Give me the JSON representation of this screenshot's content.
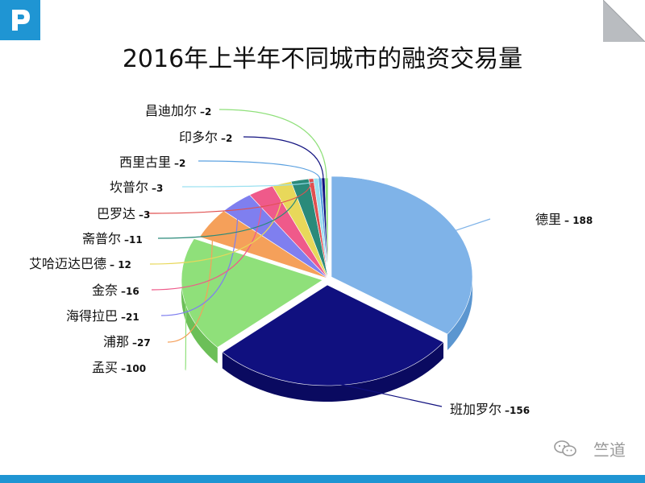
{
  "page": {
    "title": "2016年上半年不同城市的融资交易量",
    "watermark": "竺道",
    "accent_color": "#1f95d3"
  },
  "chart_data": {
    "type": "pie",
    "title": "2016年上半年不同城市的融资交易量",
    "style": "3d-exploded",
    "legend": "none",
    "slices": [
      {
        "label": "德里",
        "value_text": "– 188",
        "value": 188,
        "color": "#7fb3e8",
        "side_color": "#5b96d0"
      },
      {
        "label": "班加罗尔",
        "value_text": "–156",
        "value": 156,
        "color": "#10107f",
        "side_color": "#0a0a60"
      },
      {
        "label": "孟买",
        "value_text": "–100",
        "value": 100,
        "color": "#8fe07a",
        "side_color": "#6cbf58"
      },
      {
        "label": "浦那",
        "value_text": "–27",
        "value": 27,
        "color": "#f5a05a",
        "side_color": "#d9833e"
      },
      {
        "label": "海得拉巴",
        "value_text": "–21",
        "value": 21,
        "color": "#7f7fef",
        "side_color": "#6262cf"
      },
      {
        "label": "金奈",
        "value_text": "–16",
        "value": 16,
        "color": "#ef5a8a",
        "side_color": "#cf3e6e"
      },
      {
        "label": "艾哈迈达巴德",
        "value_text": "– 12",
        "value": 12,
        "color": "#e8d85a",
        "side_color": "#c8b83e"
      },
      {
        "label": "斋普尔",
        "value_text": "–11",
        "value": 11,
        "color": "#2a8a7a",
        "side_color": "#1c6a5c"
      },
      {
        "label": "巴罗达",
        "value_text": "–3",
        "value": 3,
        "color": "#e05050",
        "side_color": "#c03838"
      },
      {
        "label": "坎普尔",
        "value_text": "–3",
        "value": 3,
        "color": "#9ae0f0",
        "side_color": "#7ac0d0"
      },
      {
        "label": "西里古里",
        "value_text": "–2",
        "value": 2,
        "color": "#5aa0e0",
        "side_color": "#3e80c0"
      },
      {
        "label": "印多尔",
        "value_text": "–2",
        "value": 2,
        "color": "#101080",
        "side_color": "#0a0a60"
      },
      {
        "label": "昌迪加尔",
        "value_text": "–2",
        "value": 2,
        "color": "#8fe07a",
        "side_color": "#6cbf58"
      }
    ]
  }
}
